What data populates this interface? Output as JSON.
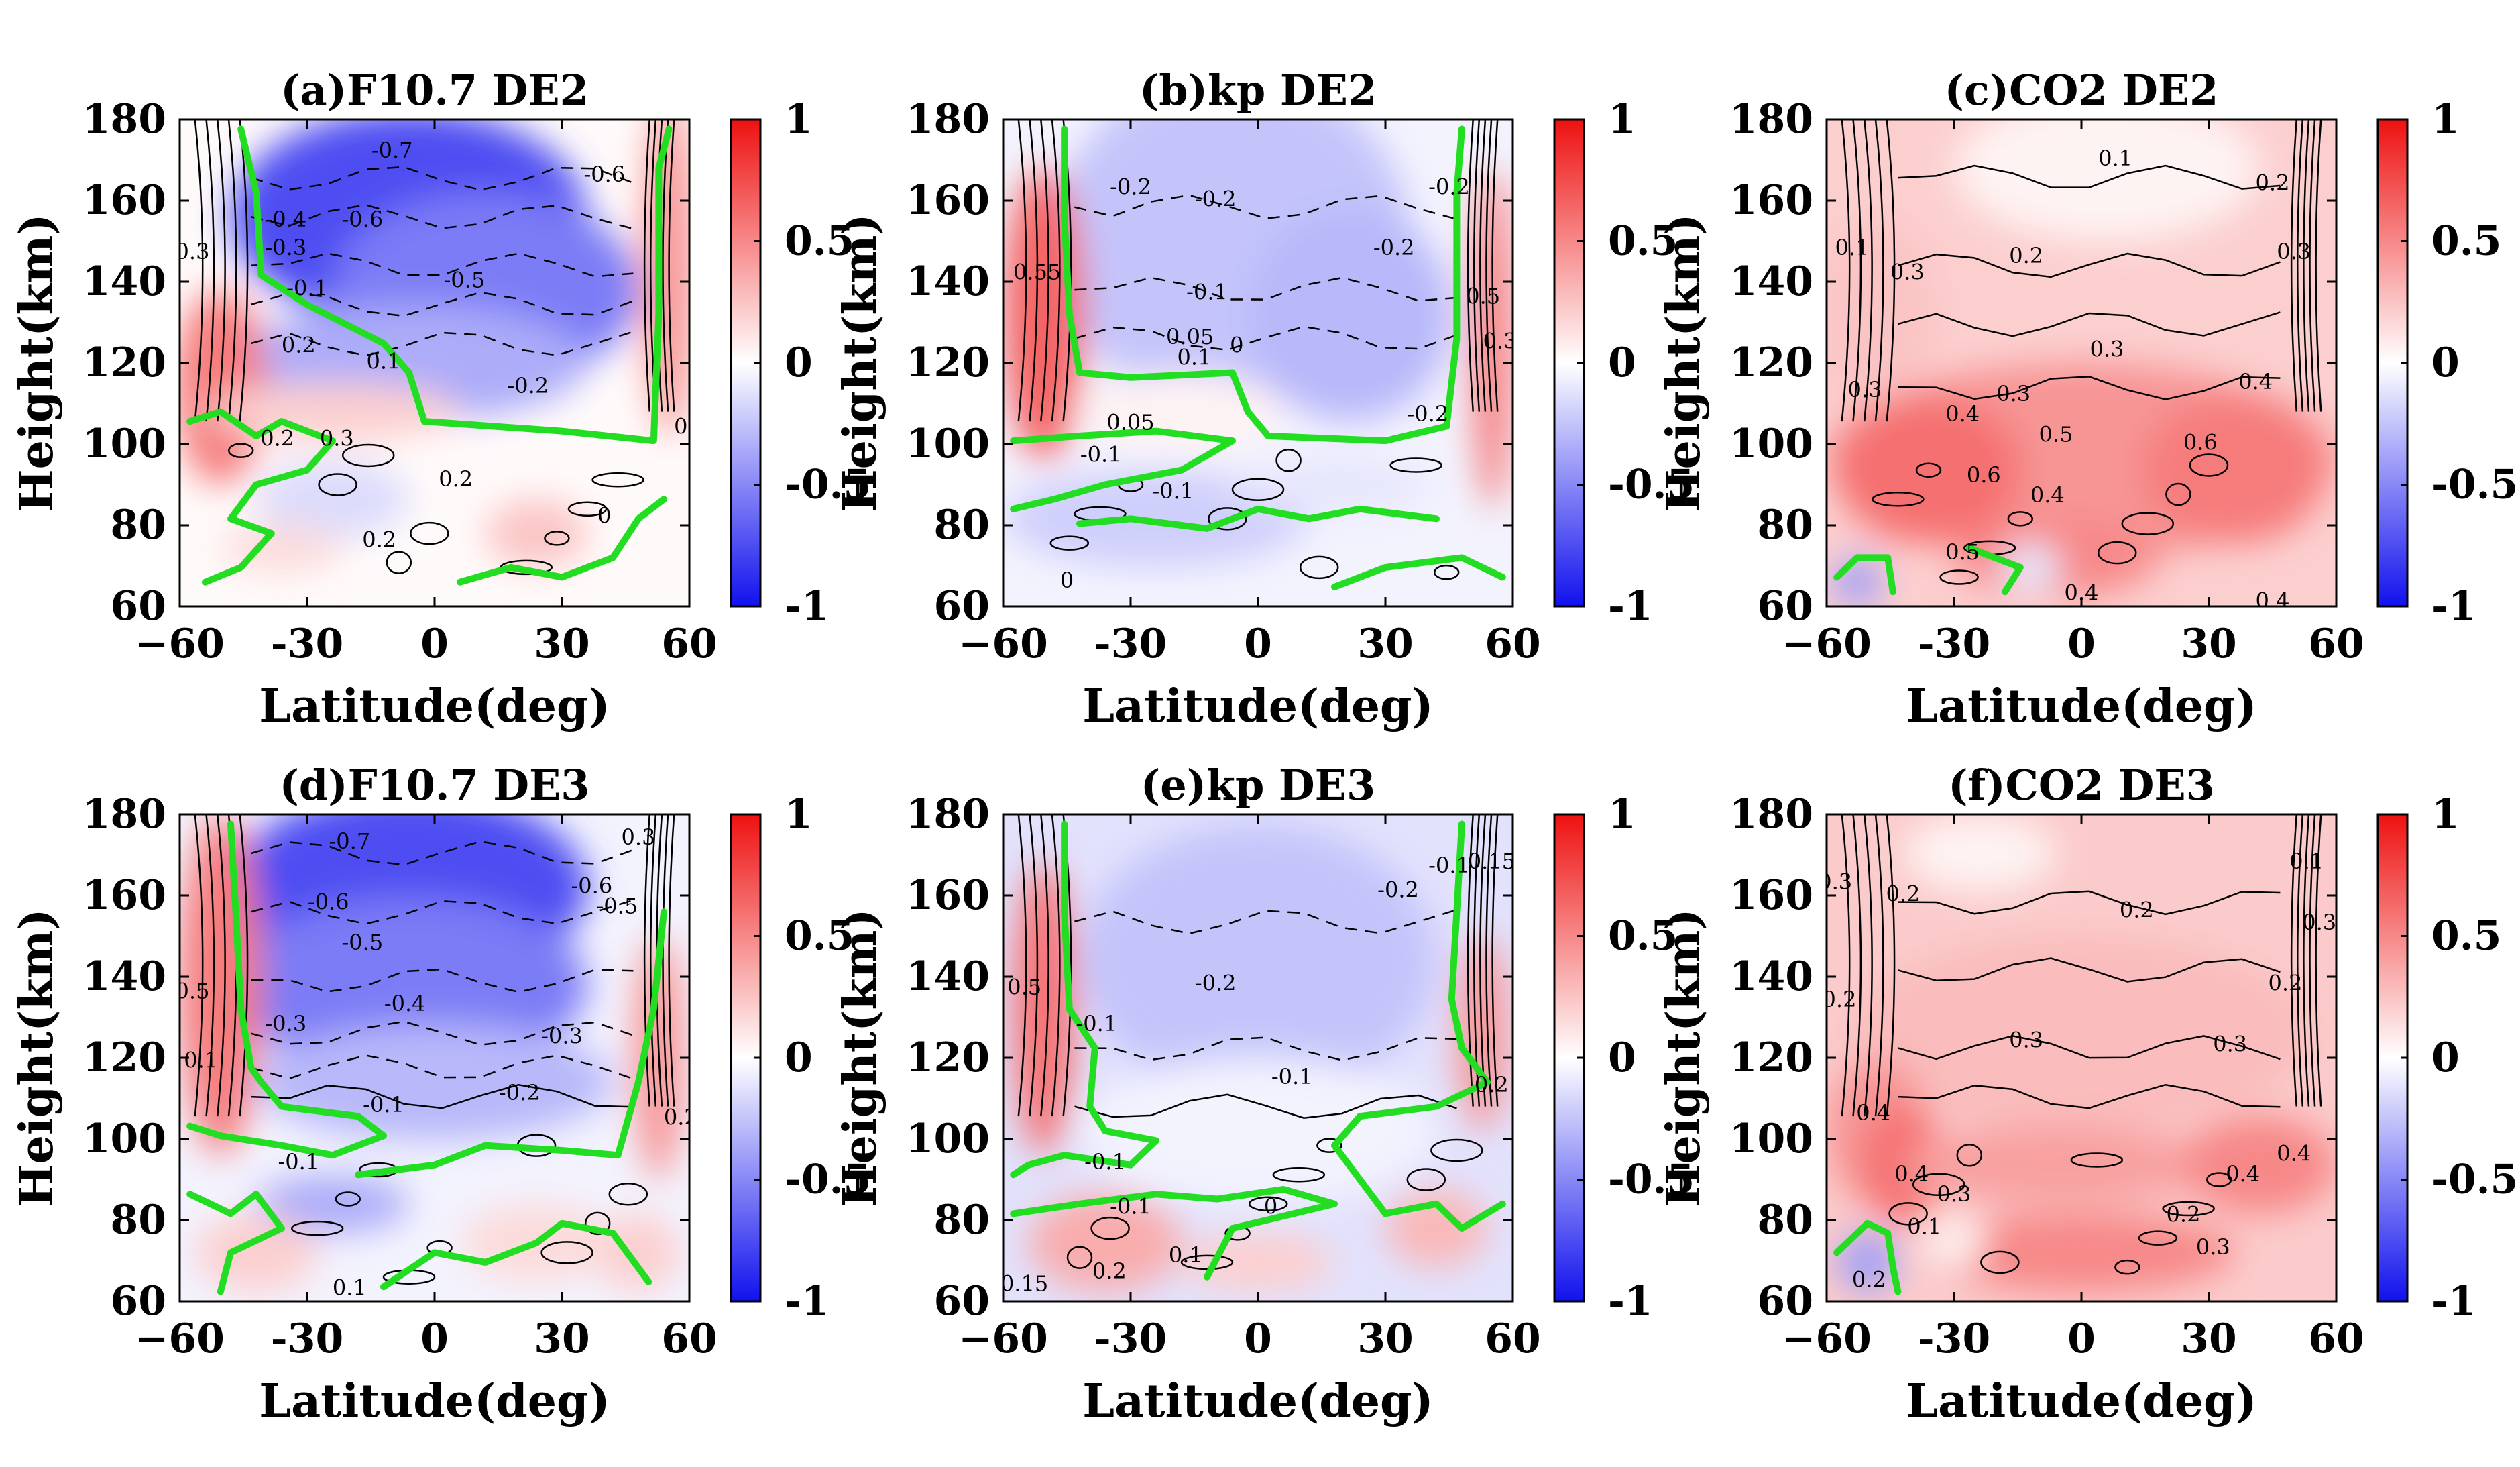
{
  "figure": {
    "colorbar": {
      "ticks": [
        "1",
        "0.5",
        "0",
        "-0.5",
        "-1"
      ],
      "tick_values": [
        1,
        0.5,
        0,
        -0.5,
        -1
      ],
      "colors": {
        "max": "#ee1111",
        "zero": "#ffffff",
        "min": "#1111ee"
      }
    },
    "contour_colors": {
      "zero_line": "#22dd22",
      "lines": "#000000"
    }
  },
  "chart_data": [
    {
      "type": "heatmap",
      "title": "(a)F10.7 DE2",
      "xlabel": "Latitude(deg)",
      "ylabel": "Height(km)",
      "xlim": [
        -60,
        60
      ],
      "ylim": [
        60,
        180
      ],
      "xticks": [
        "−60",
        "-30",
        "0",
        "30",
        "60"
      ],
      "xtick_values": [
        -60,
        -30,
        0,
        30,
        60
      ],
      "yticks": [
        "60",
        "80",
        "100",
        "120",
        "140",
        "160",
        "180"
      ],
      "ytick_values": [
        60,
        80,
        100,
        120,
        140,
        160,
        180
      ],
      "clim": [
        -1,
        1
      ],
      "contour_labels": [
        {
          "text": "-0.7",
          "lat": -10,
          "h": 172
        },
        {
          "text": "-0.6",
          "lat": 40,
          "h": 166
        },
        {
          "text": "-0.6",
          "lat": -17,
          "h": 155
        },
        {
          "text": "-0.5",
          "lat": 7,
          "h": 140
        },
        {
          "text": "-0.4",
          "lat": -35,
          "h": 155
        },
        {
          "text": "-0.3",
          "lat": -35,
          "h": 148
        },
        {
          "text": "-0.1",
          "lat": -30,
          "h": 138
        },
        {
          "text": "-0.2",
          "lat": 22,
          "h": 114
        },
        {
          "text": "0.2",
          "lat": -32,
          "h": 124
        },
        {
          "text": "0.1",
          "lat": -12,
          "h": 120
        },
        {
          "text": "0.3",
          "lat": -57,
          "h": 147
        },
        {
          "text": "0.2",
          "lat": -37,
          "h": 101
        },
        {
          "text": "0.3",
          "lat": -23,
          "h": 101
        },
        {
          "text": "0.2",
          "lat": 5,
          "h": 91
        },
        {
          "text": "0.2",
          "lat": -13,
          "h": 76
        },
        {
          "text": "0",
          "lat": 40,
          "h": 82
        },
        {
          "text": "0",
          "lat": 58,
          "h": 104
        }
      ]
    },
    {
      "type": "heatmap",
      "title": "(b)kp DE2",
      "xlabel": "Latitude(deg)",
      "ylabel": "Height(km)",
      "xlim": [
        -60,
        60
      ],
      "ylim": [
        60,
        180
      ],
      "xticks": [
        "−60",
        "-30",
        "0",
        "30",
        "60"
      ],
      "xtick_values": [
        -60,
        -30,
        0,
        30,
        60
      ],
      "yticks": [
        "60",
        "80",
        "100",
        "120",
        "140",
        "160",
        "180"
      ],
      "ytick_values": [
        60,
        80,
        100,
        120,
        140,
        160,
        180
      ],
      "clim": [
        -1,
        1
      ],
      "contour_labels": [
        {
          "text": "-0.2",
          "lat": -30,
          "h": 163
        },
        {
          "text": "-0.2",
          "lat": -10,
          "h": 160
        },
        {
          "text": "-0.2",
          "lat": 45,
          "h": 163
        },
        {
          "text": "-0.2",
          "lat": 32,
          "h": 148
        },
        {
          "text": "-0.1",
          "lat": -12,
          "h": 137
        },
        {
          "text": "0.05",
          "lat": -16,
          "h": 126
        },
        {
          "text": "0.1",
          "lat": -15,
          "h": 121
        },
        {
          "text": "0",
          "lat": -5,
          "h": 124
        },
        {
          "text": "0.55",
          "lat": -52,
          "h": 142
        },
        {
          "text": "0.5",
          "lat": 53,
          "h": 136
        },
        {
          "text": "0.3",
          "lat": 57,
          "h": 125
        },
        {
          "text": "-0.2",
          "lat": 40,
          "h": 107
        },
        {
          "text": "-0.1",
          "lat": -37,
          "h": 97
        },
        {
          "text": "0.05",
          "lat": -30,
          "h": 105
        },
        {
          "text": "-0.1",
          "lat": -20,
          "h": 88
        },
        {
          "text": "0",
          "lat": -45,
          "h": 66
        }
      ]
    },
    {
      "type": "heatmap",
      "title": "(c)CO2 DE2",
      "xlabel": "Latitude(deg)",
      "ylabel": "Height(km)",
      "xlim": [
        -60,
        60
      ],
      "ylim": [
        60,
        180
      ],
      "xticks": [
        "−60",
        "-30",
        "0",
        "30",
        "60"
      ],
      "xtick_values": [
        -60,
        -30,
        0,
        30,
        60
      ],
      "yticks": [
        "60",
        "80",
        "100",
        "120",
        "140",
        "160",
        "180"
      ],
      "ytick_values": [
        60,
        80,
        100,
        120,
        140,
        160,
        180
      ],
      "clim": [
        -1,
        1
      ],
      "contour_labels": [
        {
          "text": "0.1",
          "lat": 8,
          "h": 170
        },
        {
          "text": "0.2",
          "lat": 45,
          "h": 164
        },
        {
          "text": "0.1",
          "lat": -54,
          "h": 148
        },
        {
          "text": "0.3",
          "lat": -41,
          "h": 142
        },
        {
          "text": "0.2",
          "lat": -13,
          "h": 146
        },
        {
          "text": "0.3",
          "lat": 50,
          "h": 147
        },
        {
          "text": "0.3",
          "lat": -51,
          "h": 113
        },
        {
          "text": "0.3",
          "lat": -16,
          "h": 112
        },
        {
          "text": "0.3",
          "lat": 6,
          "h": 123
        },
        {
          "text": "0.4",
          "lat": 41,
          "h": 115
        },
        {
          "text": "0.4",
          "lat": -28,
          "h": 107
        },
        {
          "text": "0.5",
          "lat": -6,
          "h": 102
        },
        {
          "text": "0.6",
          "lat": -23,
          "h": 92
        },
        {
          "text": "0.4",
          "lat": -8,
          "h": 87
        },
        {
          "text": "0.6",
          "lat": 28,
          "h": 100
        },
        {
          "text": "0.5",
          "lat": -28,
          "h": 73
        },
        {
          "text": "0.4",
          "lat": 0,
          "h": 63
        },
        {
          "text": "0.4",
          "lat": 45,
          "h": 61
        }
      ]
    },
    {
      "type": "heatmap",
      "title": "(d)F10.7 DE3",
      "xlabel": "Latitude(deg)",
      "ylabel": "Height(km)",
      "xlim": [
        -60,
        60
      ],
      "ylim": [
        60,
        180
      ],
      "xticks": [
        "−60",
        "-30",
        "0",
        "30",
        "60"
      ],
      "xtick_values": [
        -60,
        -30,
        0,
        30,
        60
      ],
      "yticks": [
        "60",
        "80",
        "100",
        "120",
        "140",
        "160",
        "180"
      ],
      "ytick_values": [
        60,
        80,
        100,
        120,
        140,
        160,
        180
      ],
      "clim": [
        -1,
        1
      ],
      "contour_labels": [
        {
          "text": "-0.7",
          "lat": -20,
          "h": 173
        },
        {
          "text": "-0.6",
          "lat": -25,
          "h": 158
        },
        {
          "text": "-0.6",
          "lat": 37,
          "h": 162
        },
        {
          "text": "-0.5",
          "lat": -17,
          "h": 148
        },
        {
          "text": "-0.5",
          "lat": 43,
          "h": 157
        },
        {
          "text": "-0.4",
          "lat": -7,
          "h": 133
        },
        {
          "text": "-0.3",
          "lat": 30,
          "h": 125
        },
        {
          "text": "-0.3",
          "lat": -35,
          "h": 128
        },
        {
          "text": "-0.2",
          "lat": 20,
          "h": 111
        },
        {
          "text": "-0.1",
          "lat": -12,
          "h": 108
        },
        {
          "text": "-0.1",
          "lat": -32,
          "h": 94
        },
        {
          "text": "0.3",
          "lat": 48,
          "h": 174
        },
        {
          "text": "0.5",
          "lat": -57,
          "h": 136
        },
        {
          "text": "0.1",
          "lat": -55,
          "h": 119
        },
        {
          "text": "0.2",
          "lat": 58,
          "h": 105
        },
        {
          "text": "0.1",
          "lat": -20,
          "h": 63
        }
      ]
    },
    {
      "type": "heatmap",
      "title": "(e)kp DE3",
      "xlabel": "Latitude(deg)",
      "ylabel": "Height(km)",
      "xlim": [
        -60,
        60
      ],
      "ylim": [
        60,
        180
      ],
      "xticks": [
        "−60",
        "-30",
        "0",
        "30",
        "60"
      ],
      "xtick_values": [
        -60,
        -30,
        0,
        30,
        60
      ],
      "yticks": [
        "60",
        "80",
        "100",
        "120",
        "140",
        "160",
        "180"
      ],
      "ytick_values": [
        60,
        80,
        100,
        120,
        140,
        160,
        180
      ],
      "clim": [
        -1,
        1
      ],
      "contour_labels": [
        {
          "text": "-0.2",
          "lat": 33,
          "h": 161
        },
        {
          "text": "-0.1",
          "lat": 45,
          "h": 167
        },
        {
          "text": "0.15",
          "lat": 55,
          "h": 168
        },
        {
          "text": "-0.2",
          "lat": -10,
          "h": 138
        },
        {
          "text": "-0.1",
          "lat": -38,
          "h": 128
        },
        {
          "text": "-0.1",
          "lat": 8,
          "h": 115
        },
        {
          "text": "0.5",
          "lat": -55,
          "h": 137
        },
        {
          "text": "-0.1",
          "lat": -36,
          "h": 94
        },
        {
          "text": "-0.1",
          "lat": -30,
          "h": 83
        },
        {
          "text": "0.2",
          "lat": -35,
          "h": 67
        },
        {
          "text": "0.1",
          "lat": -17,
          "h": 71
        },
        {
          "text": "0.15",
          "lat": -55,
          "h": 64
        },
        {
          "text": "0",
          "lat": 3,
          "h": 83
        },
        {
          "text": "0.2",
          "lat": 55,
          "h": 113
        }
      ]
    },
    {
      "type": "heatmap",
      "title": "(f)CO2 DE3",
      "xlabel": "Latitude(deg)",
      "ylabel": "Height(km)",
      "xlim": [
        -60,
        60
      ],
      "ylim": [
        60,
        180
      ],
      "xticks": [
        "−60",
        "-30",
        "0",
        "30",
        "60"
      ],
      "xtick_values": [
        -60,
        -30,
        0,
        30,
        60
      ],
      "yticks": [
        "60",
        "80",
        "100",
        "120",
        "140",
        "160",
        "180"
      ],
      "ytick_values": [
        60,
        80,
        100,
        120,
        140,
        160,
        180
      ],
      "clim": [
        -1,
        1
      ],
      "contour_labels": [
        {
          "text": "0.1",
          "lat": 53,
          "h": 168
        },
        {
          "text": "0.2",
          "lat": -42,
          "h": 160
        },
        {
          "text": "0.3",
          "lat": -58,
          "h": 163
        },
        {
          "text": "0.2",
          "lat": 13,
          "h": 156
        },
        {
          "text": "0.3",
          "lat": 56,
          "h": 153
        },
        {
          "text": "0.2",
          "lat": -57,
          "h": 134
        },
        {
          "text": "0.2",
          "lat": 48,
          "h": 138
        },
        {
          "text": "0.3",
          "lat": -13,
          "h": 124
        },
        {
          "text": "0.3",
          "lat": 35,
          "h": 123
        },
        {
          "text": "0.4",
          "lat": -49,
          "h": 106
        },
        {
          "text": "0.4",
          "lat": -40,
          "h": 91
        },
        {
          "text": "0.3",
          "lat": -30,
          "h": 86
        },
        {
          "text": "0.4",
          "lat": 38,
          "h": 91
        },
        {
          "text": "0.4",
          "lat": 50,
          "h": 96
        },
        {
          "text": "0.1",
          "lat": -37,
          "h": 78
        },
        {
          "text": "0.2",
          "lat": 24,
          "h": 81
        },
        {
          "text": "0.3",
          "lat": 31,
          "h": 73
        },
        {
          "text": "0.2",
          "lat": -50,
          "h": 65
        }
      ]
    }
  ]
}
